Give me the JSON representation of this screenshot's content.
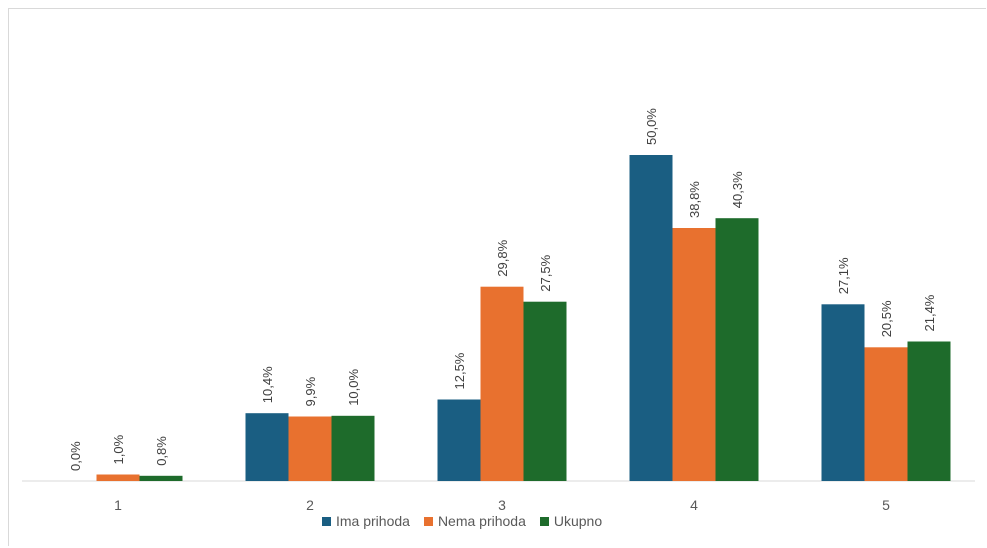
{
  "chart_data": {
    "type": "bar",
    "categories": [
      "1",
      "2",
      "3",
      "4",
      "5"
    ],
    "series": [
      {
        "name": "Ima prihoda",
        "color": "#1a5e82",
        "values": [
          0.0,
          10.4,
          12.5,
          50.0,
          27.1
        ],
        "labels": [
          "0,0%",
          "10,4%",
          "12,5%",
          "50,0%",
          "27,1%"
        ]
      },
      {
        "name": "Nema prihoda",
        "color": "#e8712f",
        "values": [
          1.0,
          9.9,
          29.8,
          38.8,
          20.5
        ],
        "labels": [
          "1,0%",
          "9,9%",
          "29,8%",
          "38,8%",
          "20,5%"
        ]
      },
      {
        "name": "Ukupno",
        "color": "#1e6b2b",
        "values": [
          0.8,
          10.0,
          27.5,
          40.3,
          21.4
        ],
        "labels": [
          "0,8%",
          "10,0%",
          "27,5%",
          "40,3%",
          "21,4%"
        ]
      }
    ],
    "ylim": [
      0,
      50
    ],
    "grid": false,
    "legend_position": "bottom"
  }
}
